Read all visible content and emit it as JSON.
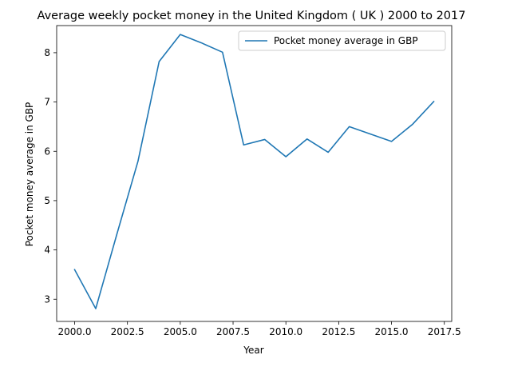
{
  "chart_data": {
    "type": "line",
    "title": "Average weekly pocket money in the United Kingdom ( UK ) 2000 to 2017",
    "xlabel": "Year",
    "ylabel": "Pocket money average in GBP",
    "xlim": [
      1999.15,
      2017.85
    ],
    "ylim": [
      2.55,
      8.55
    ],
    "xticks": [
      2000.0,
      2002.5,
      2005.0,
      2007.5,
      2010.0,
      2012.5,
      2015.0,
      2017.5
    ],
    "xtick_labels": [
      "2000.0",
      "2002.5",
      "2005.0",
      "2007.5",
      "2010.0",
      "2012.5",
      "2015.0",
      "2017.5"
    ],
    "yticks": [
      3,
      4,
      5,
      6,
      7,
      8
    ],
    "ytick_labels": [
      "3",
      "4",
      "5",
      "6",
      "7",
      "8"
    ],
    "grid": false,
    "legend_position": "top-right",
    "series": [
      {
        "name": "Pocket money average in GBP",
        "color": "#1f77b4",
        "x": [
          2000,
          2001,
          2002,
          2003,
          2004,
          2005,
          2006,
          2007,
          2008,
          2009,
          2010,
          2011,
          2012,
          2013,
          2014,
          2015,
          2016,
          2017
        ],
        "y": [
          3.6,
          2.81,
          4.32,
          5.8,
          7.82,
          8.37,
          8.2,
          8.01,
          6.13,
          6.24,
          5.89,
          6.25,
          5.98,
          6.5,
          6.35,
          6.2,
          6.55,
          7.01
        ]
      }
    ]
  }
}
